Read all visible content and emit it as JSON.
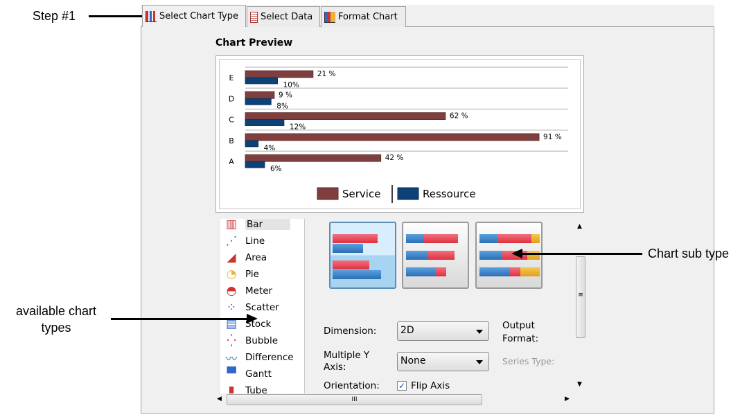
{
  "tabs": [
    {
      "label": "Select Chart Type",
      "icon": "bar-chart-icon",
      "active": true
    },
    {
      "label": "Select Data",
      "icon": "data-select-icon"
    },
    {
      "label": "Format Chart",
      "icon": "format-chart-icon"
    }
  ],
  "preview_title": "Chart Preview",
  "chart_data": {
    "type": "bar",
    "orientation": "horizontal",
    "categories": [
      "A",
      "B",
      "C",
      "D",
      "E"
    ],
    "series": [
      {
        "name": "Service",
        "color": "#7f3f3f",
        "values": [
          42,
          91,
          62,
          9,
          21
        ],
        "labels": [
          "42 %",
          "91 %",
          "62 %",
          "9 %",
          "21 %"
        ]
      },
      {
        "name": "Ressource",
        "color": "#0c4276",
        "values": [
          6,
          4,
          12,
          8,
          10
        ],
        "labels": [
          "6%",
          "4%",
          "12%",
          "8%",
          "10%"
        ]
      }
    ],
    "xlim": [
      0,
      100
    ],
    "grid": true,
    "legend": "bottom"
  },
  "chart_types": [
    {
      "label": "Bar",
      "icon": "bar-chart-icon",
      "selected": true
    },
    {
      "label": "Line",
      "icon": "line-chart-icon"
    },
    {
      "label": "Area",
      "icon": "area-chart-icon"
    },
    {
      "label": "Pie",
      "icon": "pie-chart-icon"
    },
    {
      "label": "Meter",
      "icon": "meter-chart-icon"
    },
    {
      "label": "Scatter",
      "icon": "scatter-chart-icon"
    },
    {
      "label": "Stock",
      "icon": "stock-chart-icon"
    },
    {
      "label": "Bubble",
      "icon": "bubble-chart-icon"
    },
    {
      "label": "Difference",
      "icon": "difference-chart-icon"
    },
    {
      "label": "Gantt",
      "icon": "gantt-chart-icon"
    },
    {
      "label": "Tube",
      "icon": "tube-chart-icon"
    }
  ],
  "subtypes": [
    "side-by-side",
    "stacked",
    "percent-stacked"
  ],
  "form": {
    "dimension_label": "Dimension:",
    "dimension_value": "2D",
    "multi_y_label": "Multiple Y Axis:",
    "multi_y_value": "None",
    "orientation_label": "Orientation:",
    "flip_axis_label": "Flip Axis",
    "flip_axis_checked": true,
    "output_format_label": "Output Format:",
    "series_type_label": "Series Type:"
  },
  "annotations": {
    "step1": "Step #1",
    "chart_sub_type": "Chart sub type",
    "available": "available chart types"
  }
}
